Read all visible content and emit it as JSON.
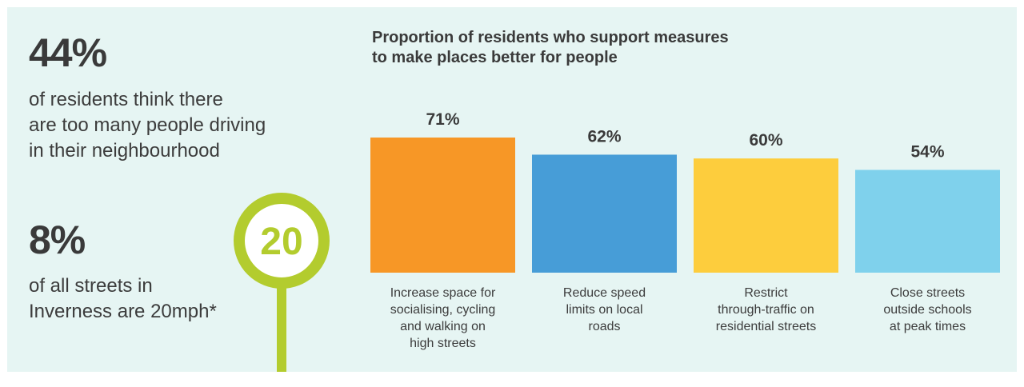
{
  "stat1": {
    "value": "44%",
    "lines": [
      "of residents think there",
      "are too many people driving",
      "in their neighbourhood"
    ]
  },
  "stat2": {
    "value": "8%",
    "lines": [
      "of all streets in",
      "Inverness are 20mph*"
    ],
    "sign_text": "20"
  },
  "chart_data": {
    "type": "bar",
    "title_lines": [
      "Proportion of residents who support measures",
      "to make places better for people"
    ],
    "categories": [
      [
        "Increase space for",
        "socialising, cycling",
        "and walking on",
        "high streets"
      ],
      [
        "Reduce speed",
        "limits on local",
        "roads"
      ],
      [
        "Restrict",
        "through-traffic on",
        "residential streets"
      ],
      [
        "Close streets",
        "outside schools",
        "at peak times"
      ]
    ],
    "values": [
      71,
      62,
      60,
      54
    ],
    "value_labels": [
      "71%",
      "62%",
      "60%",
      "54%"
    ],
    "colors": [
      "#f79726",
      "#479dd7",
      "#fdcd3d",
      "#7fd1ec"
    ],
    "xlabel": "",
    "ylabel": "",
    "ylim": [
      0,
      100
    ],
    "grid": false,
    "legend": "none"
  },
  "colors": {
    "background": "#e6f5f3",
    "sign_green": "#b3cc2e"
  }
}
